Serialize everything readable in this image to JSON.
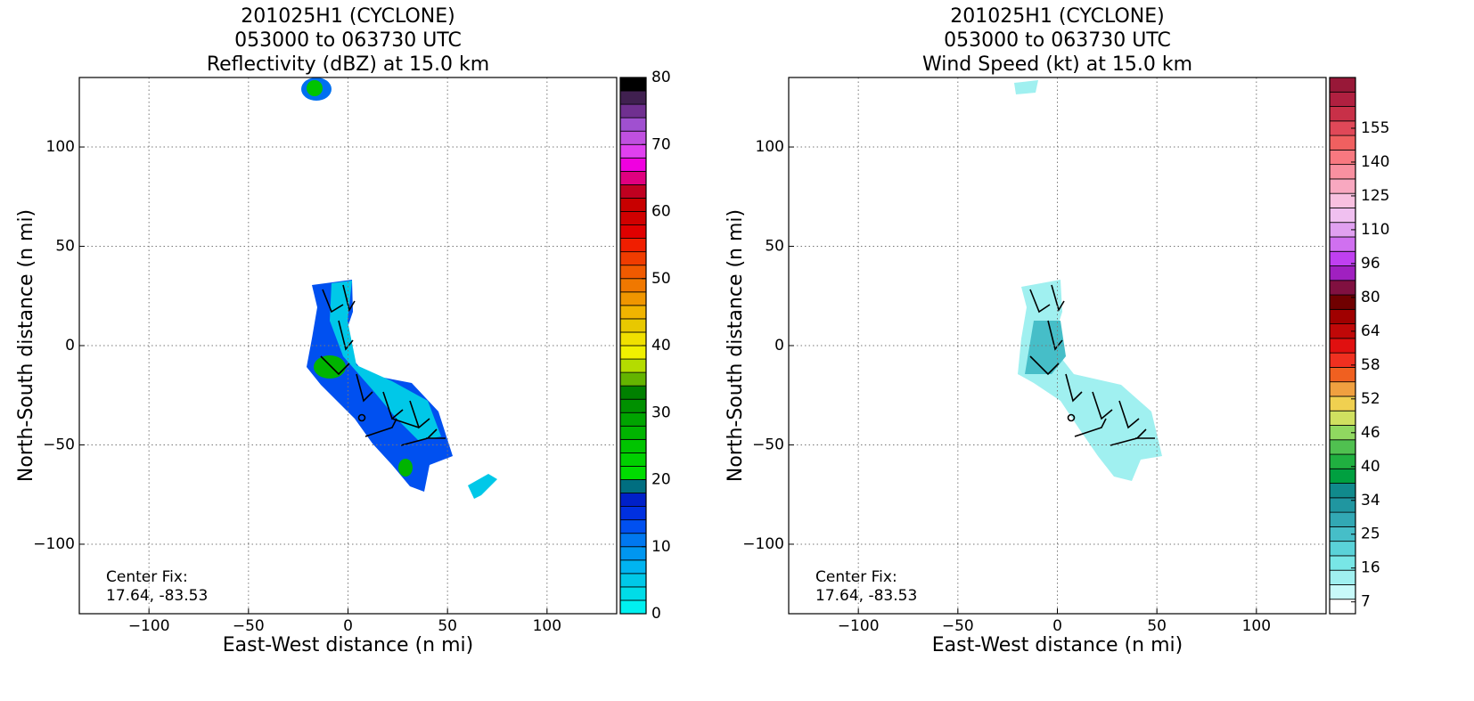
{
  "chart_data": [
    {
      "type": "heatmap",
      "title": [
        "201025H1 (CYCLONE)",
        "053000 to 063730 UTC",
        "Reflectivity (dBZ) at 15.0 km"
      ],
      "xlabel": "East-West distance (n mi)",
      "ylabel": "North-South distance (n mi)",
      "xlim": [
        -135,
        135
      ],
      "ylim": [
        -135,
        135
      ],
      "xticks": [
        {
          "value": -100,
          "label": "−100"
        },
        {
          "value": -50,
          "label": "−50"
        },
        0,
        50,
        100
      ],
      "yticks": [
        {
          "value": -100,
          "label": "−100"
        },
        {
          "value": -50,
          "label": "−50"
        },
        0,
        50,
        100
      ],
      "grid": true,
      "annotation": [
        "Center Fix:",
        "17.64, -83.53"
      ],
      "colorbar": {
        "scale": "linear",
        "lim": [
          0,
          80
        ],
        "ticks": [
          0,
          10,
          20,
          30,
          40,
          50,
          60,
          70,
          80
        ],
        "colors": [
          "#00f0f0",
          "#00dce8",
          "#00c8e8",
          "#00b4f0",
          "#0096f0",
          "#0078f0",
          "#0050f0",
          "#0030e0",
          "#0020c8",
          "#006e80",
          "#00dc00",
          "#00d000",
          "#00c400",
          "#00b400",
          "#00a400",
          "#009000",
          "#008000",
          "#64b400",
          "#b4dc00",
          "#f0f000",
          "#f0e000",
          "#e8c800",
          "#f0b400",
          "#f09600",
          "#f07800",
          "#f05a00",
          "#f03c00",
          "#f01e00",
          "#e00000",
          "#d00000",
          "#c80000",
          "#c00020",
          "#e00080",
          "#f000e0",
          "#e040f0",
          "#c050e0",
          "#a050d0",
          "#703090",
          "#402050",
          "#000000"
        ]
      }
    },
    {
      "type": "heatmap",
      "title": [
        "201025H1 (CYCLONE)",
        "053000 to 063730 UTC",
        "Wind Speed (kt) at 15.0 km"
      ],
      "xlabel": "East-West distance (n mi)",
      "ylabel": "North-South distance (n mi)",
      "xlim": [
        -135,
        135
      ],
      "ylim": [
        -135,
        135
      ],
      "xticks": [
        {
          "value": -100,
          "label": "−100"
        },
        {
          "value": -50,
          "label": "−50"
        },
        0,
        50,
        100
      ],
      "yticks": [
        {
          "value": -100,
          "label": "−100"
        },
        {
          "value": -50,
          "label": "−50"
        },
        0,
        50,
        100
      ],
      "grid": true,
      "annotation": [
        "Center Fix:",
        "17.64, -83.53"
      ],
      "colorbar": {
        "scale": "categorical",
        "ticks": [
          7,
          16,
          25,
          34,
          40,
          46,
          52,
          58,
          64,
          80,
          96,
          110,
          125,
          140,
          155
        ],
        "colors": [
          "#ffffff",
          "#c8fafa",
          "#a0f0f0",
          "#78e6e6",
          "#5ad2d8",
          "#46bec8",
          "#32a8b4",
          "#2096a0",
          "#108a8c",
          "#00a040",
          "#20b040",
          "#50c050",
          "#90d860",
          "#d0e060",
          "#f0d050",
          "#f0a040",
          "#f06020",
          "#f03020",
          "#e01010",
          "#c00808",
          "#a00000",
          "#700000",
          "#801040",
          "#a020c0",
          "#c040f0",
          "#d070f0",
          "#e0a0f0",
          "#f0c0f0",
          "#f8c0e0",
          "#f8a8c0",
          "#f890a0",
          "#f87880",
          "#f06060",
          "#e04858",
          "#c83048",
          "#b02040",
          "#981838"
        ]
      }
    }
  ]
}
